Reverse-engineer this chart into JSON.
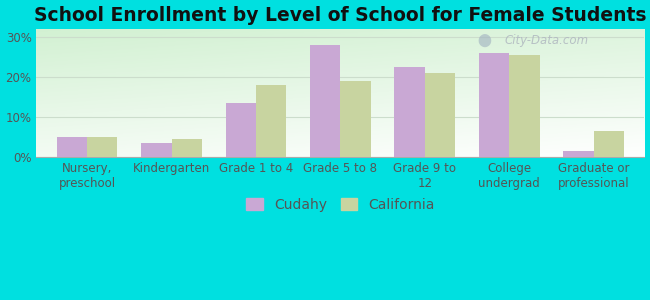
{
  "title": "School Enrollment by Level of School for Female Students",
  "categories": [
    "Nursery,\npreschool",
    "Kindergarten",
    "Grade 1 to 4",
    "Grade 5 to 8",
    "Grade 9 to\n12",
    "College\nundergrad",
    "Graduate or\nprofessional"
  ],
  "cudahy": [
    5.0,
    3.5,
    13.5,
    28.0,
    22.5,
    26.0,
    1.5
  ],
  "california": [
    5.0,
    4.5,
    18.0,
    19.0,
    21.0,
    25.5,
    6.5
  ],
  "cudahy_color": "#c9a8d4",
  "california_color": "#c8d4a0",
  "background_outer": "#00e0e0",
  "background_inner_top": "#e0f0f0",
  "background_inner_bottom": "#d0eecc",
  "grid_color": "#ccddcc",
  "ylim": [
    0,
    32
  ],
  "yticks": [
    0,
    10,
    20,
    30
  ],
  "ytick_labels": [
    "0%",
    "10%",
    "20%",
    "30%"
  ],
  "legend_cudahy": "Cudahy",
  "legend_california": "California",
  "bar_width": 0.36,
  "title_fontsize": 13.5,
  "tick_fontsize": 8.5,
  "legend_fontsize": 10
}
